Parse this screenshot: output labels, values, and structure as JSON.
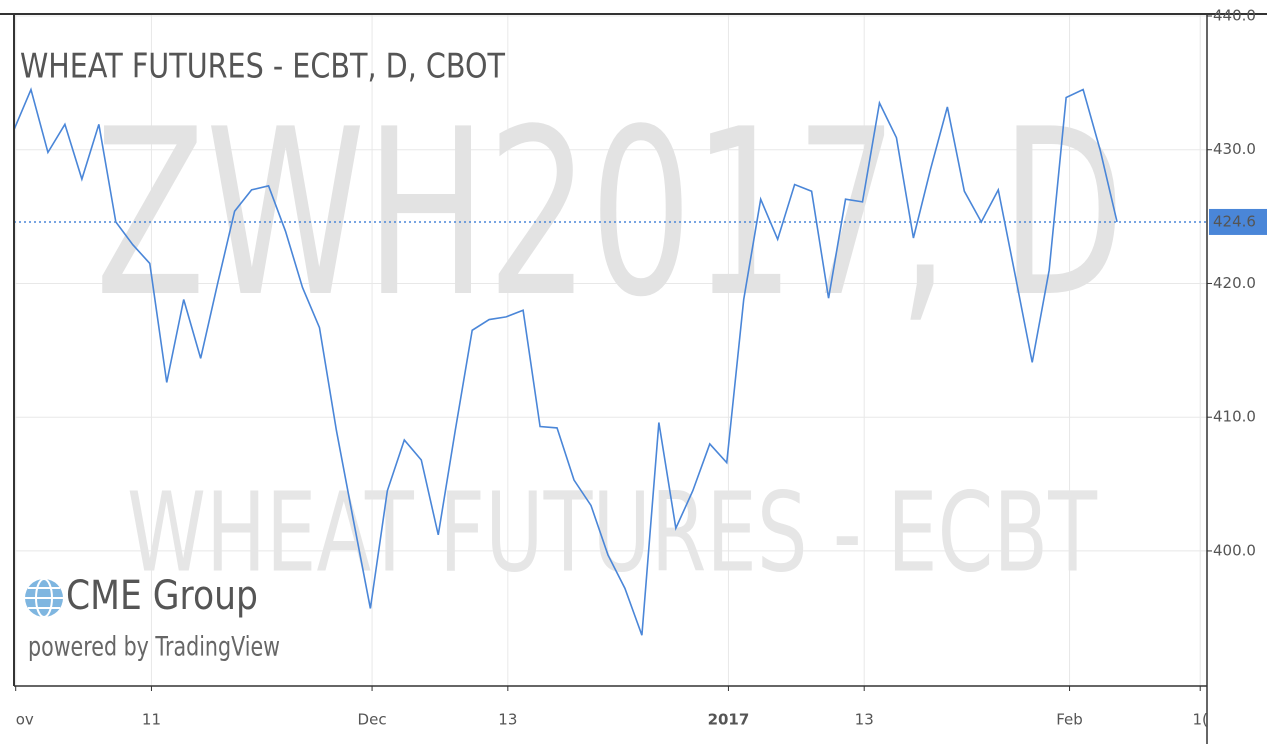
{
  "chart_data": {
    "type": "line",
    "title": "WHEAT FUTURES - ECBT, D, CBOT",
    "watermark": "ZWH2017, D",
    "watermark_subtitle": "WHEAT FUTURES - ECBT",
    "logo": "CME Group",
    "credit": "powered by TradingView",
    "categories": [
      null,
      null,
      null,
      null,
      null,
      null,
      null,
      null,
      null,
      null,
      null,
      null,
      null,
      null,
      null,
      null,
      null,
      null,
      null,
      null,
      null,
      null,
      null,
      null,
      null,
      null,
      null,
      null,
      null,
      null,
      null,
      null,
      null,
      null,
      null,
      null,
      null,
      null,
      null,
      null,
      null,
      null,
      null,
      null,
      null,
      null,
      null,
      null,
      null,
      null,
      null,
      null,
      null,
      null,
      null,
      null,
      null,
      null,
      null,
      null,
      null,
      null,
      null,
      null,
      null,
      null
    ],
    "series": [
      {
        "name": "ZWH2017",
        "color": "#4a86d8",
        "values": [
          431.5,
          434.5,
          429.8,
          431.9,
          427.8,
          431.9,
          424.6,
          422.9,
          421.5,
          412.6,
          418.8,
          414.4,
          420.0,
          425.4,
          427.0,
          427.3,
          423.9,
          419.7,
          416.7,
          409.0,
          402.3,
          395.7,
          404.5,
          408.3,
          406.8,
          401.2,
          409.0,
          416.5,
          417.3,
          417.5,
          418.0,
          409.3,
          409.2,
          405.3,
          403.4,
          399.7,
          397.2,
          393.7,
          409.6,
          401.7,
          404.5,
          408.0,
          406.6,
          418.8,
          426.3,
          423.3,
          427.4,
          426.9,
          418.9,
          426.3,
          426.1,
          433.5,
          430.9,
          423.4,
          428.5,
          433.2,
          426.9,
          424.6,
          427.0,
          420.6,
          414.1,
          421.0,
          433.9,
          434.5,
          430.0,
          424.6
        ]
      }
    ],
    "price_line": {
      "value": 424.6,
      "label": "424.6"
    },
    "xlim": [
      0,
      70.3
    ],
    "xticks": [
      {
        "value": 0.1,
        "label": "ov"
      },
      {
        "value": 8.1,
        "label": "11"
      },
      {
        "value": 21.1,
        "label": "Dec"
      },
      {
        "value": 29.1,
        "label": "13"
      },
      {
        "value": 42.1,
        "label": "2017"
      },
      {
        "value": 50.1,
        "label": "13"
      },
      {
        "value": 62.2,
        "label": "Feb"
      },
      {
        "value": 69.9,
        "label": "1("
      }
    ],
    "ylim": [
      389.9,
      440.15
    ],
    "yticks": [
      {
        "value": 400,
        "label": "400.0"
      },
      {
        "value": 410,
        "label": "410.0"
      },
      {
        "value": 420,
        "label": "420.0"
      },
      {
        "value": 430,
        "label": "430.0"
      },
      {
        "value": 440,
        "label": "440.0"
      }
    ],
    "grid": true
  }
}
